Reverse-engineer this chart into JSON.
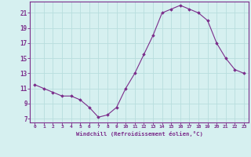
{
  "x": [
    0,
    1,
    2,
    3,
    4,
    5,
    6,
    7,
    8,
    9,
    10,
    11,
    12,
    13,
    14,
    15,
    16,
    17,
    18,
    19,
    20,
    21,
    22,
    23
  ],
  "y": [
    11.5,
    11.0,
    10.5,
    10.0,
    10.0,
    9.5,
    8.5,
    7.2,
    7.5,
    8.5,
    11.0,
    13.0,
    15.5,
    18.0,
    21.0,
    21.5,
    22.0,
    21.5,
    21.0,
    20.0,
    17.0,
    15.0,
    13.5,
    13.0
  ],
  "ylim": [
    6.5,
    22.5
  ],
  "yticks": [
    7,
    9,
    11,
    13,
    15,
    17,
    19,
    21
  ],
  "xlabel": "Windchill (Refroidissement éolien,°C)",
  "line_color": "#7b2d8b",
  "marker_color": "#7b2d8b",
  "bg_color": "#d6f0f0",
  "grid_color": "#b8dede",
  "label_color": "#7b2d8b",
  "tick_color": "#7b2d8b",
  "spine_color": "#7b2d8b"
}
